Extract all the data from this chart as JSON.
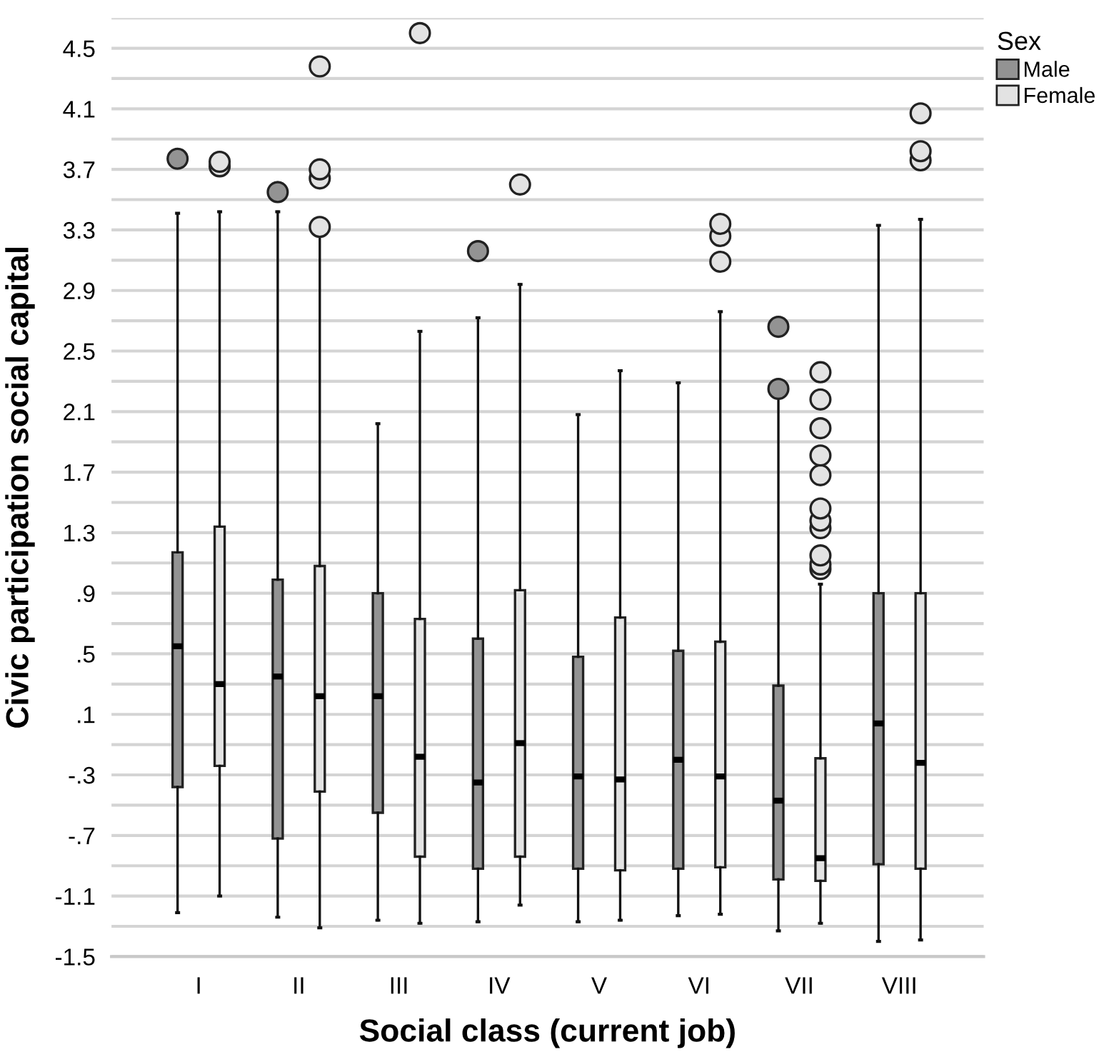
{
  "chart_data": {
    "type": "box",
    "xlabel": "Social class (current job)",
    "ylabel": "Civic participation social capital",
    "legend_title": "Sex",
    "legend": "top right",
    "grid": "y",
    "categories": [
      "I",
      "II",
      "III",
      "IV",
      "V",
      "VI",
      "VII",
      "VIII"
    ],
    "ylim": [
      -1.5,
      4.7
    ],
    "yticks": [
      {
        "value": -1.5,
        "label": "-1.5"
      },
      {
        "value": -1.3,
        "label": null
      },
      {
        "value": -1.1,
        "label": "-1.1"
      },
      {
        "value": -0.9,
        "label": null
      },
      {
        "value": -0.7,
        "label": "-.7"
      },
      {
        "value": -0.5,
        "label": null
      },
      {
        "value": -0.3,
        "label": "-.3"
      },
      {
        "value": -0.1,
        "label": null
      },
      {
        "value": 0.1,
        "label": ".1"
      },
      {
        "value": 0.3,
        "label": null
      },
      {
        "value": 0.5,
        "label": ".5"
      },
      {
        "value": 0.7,
        "label": null
      },
      {
        "value": 0.9,
        "label": ".9"
      },
      {
        "value": 1.1,
        "label": null
      },
      1.3,
      {
        "value": 1.5,
        "label": null
      },
      1.7,
      {
        "value": 1.9,
        "label": null
      },
      2.1,
      {
        "value": 2.3,
        "label": null
      },
      2.5,
      {
        "value": 2.7,
        "label": null
      },
      2.9,
      {
        "value": 3.1,
        "label": null
      },
      3.3,
      {
        "value": 3.5,
        "label": null
      },
      3.7,
      {
        "value": 3.9,
        "label": null
      },
      4.1,
      {
        "value": 4.3,
        "label": null
      },
      4.5,
      {
        "value": 4.7,
        "label": null
      }
    ],
    "series": [
      {
        "name": "Male",
        "color": "#939393",
        "boxes": [
          {
            "low": -1.21,
            "q1": -0.38,
            "median": 0.55,
            "q3": 1.17,
            "high": 3.41,
            "outliers": [
              3.77
            ]
          },
          {
            "low": -1.24,
            "q1": -0.72,
            "median": 0.35,
            "q3": 0.99,
            "high": 3.42,
            "outliers": [
              3.55
            ]
          },
          {
            "low": -1.26,
            "q1": -0.55,
            "median": 0.22,
            "q3": 0.9,
            "high": 2.02
          },
          {
            "low": -1.27,
            "q1": -0.92,
            "median": -0.35,
            "q3": 0.6,
            "high": 2.72,
            "outliers": [
              3.16
            ]
          },
          {
            "low": -1.27,
            "q1": -0.92,
            "median": -0.31,
            "q3": 0.48,
            "high": 2.08
          },
          {
            "low": -1.23,
            "q1": -0.92,
            "median": -0.2,
            "q3": 0.52,
            "high": 2.29
          },
          {
            "low": -1.33,
            "q1": -0.99,
            "median": -0.47,
            "q3": 0.29,
            "high": 2.23,
            "outliers": [
              2.25,
              2.66
            ]
          },
          {
            "low": -1.4,
            "q1": -0.89,
            "median": 0.04,
            "q3": 0.9,
            "high": 3.33
          }
        ]
      },
      {
        "name": "Female",
        "color": "#e3e3e3",
        "boxes": [
          {
            "low": -1.1,
            "q1": -0.24,
            "median": 0.3,
            "q3": 1.34,
            "high": 3.42,
            "outliers": [
              3.72,
              3.75
            ]
          },
          {
            "low": -1.31,
            "q1": -0.41,
            "median": 0.22,
            "q3": 1.08,
            "high": 3.28,
            "outliers": [
              3.32,
              3.64,
              3.7,
              4.38
            ]
          },
          {
            "low": -1.28,
            "q1": -0.84,
            "median": -0.18,
            "q3": 0.73,
            "high": 2.63,
            "outliers": [
              4.6
            ]
          },
          {
            "low": -1.16,
            "q1": -0.84,
            "median": -0.09,
            "q3": 0.92,
            "high": 2.94,
            "outliers": [
              3.6
            ]
          },
          {
            "low": -1.26,
            "q1": -0.93,
            "median": -0.33,
            "q3": 0.74,
            "high": 2.37
          },
          {
            "low": -1.22,
            "q1": -0.91,
            "median": -0.31,
            "q3": 0.58,
            "high": 2.76,
            "outliers": [
              3.09,
              3.26,
              3.34
            ]
          },
          {
            "low": -1.28,
            "q1": -1.0,
            "median": -0.85,
            "q3": -0.19,
            "high": 0.96,
            "outliers": [
              1.06,
              1.09,
              1.15,
              1.33,
              1.38,
              1.46,
              1.68,
              1.81,
              1.99,
              2.18,
              2.36
            ]
          },
          {
            "low": -1.39,
            "q1": -0.92,
            "median": -0.22,
            "q3": 0.9,
            "high": 3.37,
            "outliers": [
              3.76,
              3.82,
              4.07
            ]
          }
        ]
      }
    ]
  }
}
